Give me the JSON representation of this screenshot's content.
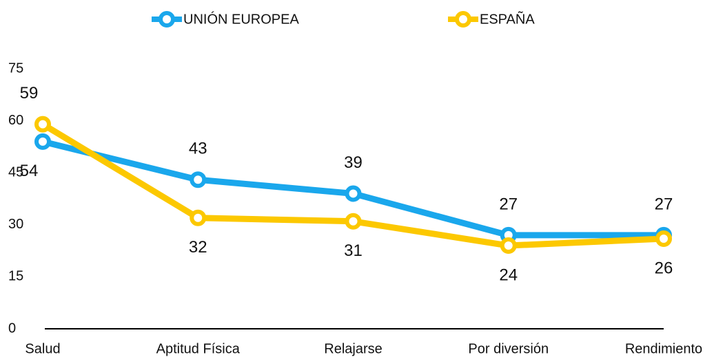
{
  "chart_data": {
    "type": "line",
    "categories": [
      "Salud",
      "Aptitud Física",
      "Relajarse",
      "Por diversión",
      "Rendimiento"
    ],
    "series": [
      {
        "name": "UNIÓN EUROPEA",
        "color": "#1aa7ec",
        "values": [
          54,
          43,
          39,
          27,
          27
        ]
      },
      {
        "name": "ESPAÑA",
        "color": "#fcc800",
        "values": [
          59,
          32,
          31,
          24,
          26
        ]
      }
    ],
    "ylim": [
      0,
      75
    ],
    "yticks": [
      0,
      15,
      30,
      45,
      60,
      75
    ],
    "grid": false,
    "legend": "top"
  }
}
